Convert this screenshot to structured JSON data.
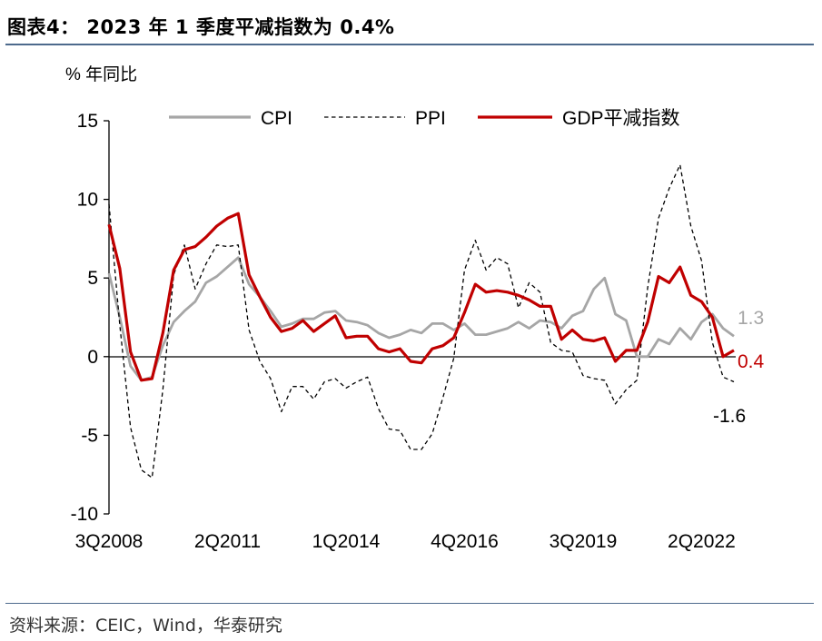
{
  "header": {
    "title": "图表4：  2023 年 1 季度平减指数为 0.4%"
  },
  "source": "资料来源：CEIC，Wind，华泰研究",
  "chart_data": {
    "type": "line",
    "unit_label": "% 年同比",
    "ylim": [
      -10,
      15
    ],
    "yticks": [
      15,
      10,
      5,
      0,
      -5,
      -10
    ],
    "x": [
      "3Q2008",
      "4Q2008",
      "1Q2009",
      "2Q2009",
      "3Q2009",
      "4Q2009",
      "1Q2010",
      "2Q2010",
      "3Q2010",
      "4Q2010",
      "1Q2011",
      "2Q2011",
      "3Q2011",
      "4Q2011",
      "1Q2012",
      "2Q2012",
      "3Q2012",
      "4Q2012",
      "1Q2013",
      "2Q2013",
      "3Q2013",
      "4Q2013",
      "1Q2014",
      "2Q2014",
      "3Q2014",
      "4Q2014",
      "1Q2015",
      "2Q2015",
      "3Q2015",
      "4Q2015",
      "1Q2016",
      "2Q2016",
      "3Q2016",
      "4Q2016",
      "1Q2017",
      "2Q2017",
      "3Q2017",
      "4Q2017",
      "1Q2018",
      "2Q2018",
      "3Q2018",
      "4Q2018",
      "1Q2019",
      "2Q2019",
      "3Q2019",
      "4Q2019",
      "1Q2020",
      "2Q2020",
      "3Q2020",
      "4Q2020",
      "1Q2021",
      "2Q2021",
      "3Q2021",
      "4Q2021",
      "1Q2022",
      "2Q2022",
      "3Q2022",
      "4Q2022",
      "1Q2023"
    ],
    "xtick_labels": [
      "3Q2008",
      "2Q2011",
      "1Q2014",
      "4Q2016",
      "3Q2019",
      "2Q2022"
    ],
    "series": [
      {
        "name": "CPI",
        "color": "#a6a6a6",
        "style": "solid",
        "values": [
          5.3,
          2.5,
          -0.6,
          -1.5,
          -1.3,
          0.7,
          2.2,
          2.9,
          3.5,
          4.7,
          5.1,
          5.7,
          6.3,
          4.6,
          3.8,
          2.9,
          1.9,
          2.1,
          2.4,
          2.4,
          2.8,
          2.9,
          2.3,
          2.2,
          2.0,
          1.5,
          1.2,
          1.4,
          1.7,
          1.5,
          2.1,
          2.1,
          1.7,
          2.1,
          1.4,
          1.4,
          1.6,
          1.8,
          2.2,
          1.8,
          2.3,
          2.2,
          1.8,
          2.6,
          2.9,
          4.3,
          5.0,
          2.7,
          2.3,
          0.0,
          0.0,
          1.1,
          0.8,
          1.8,
          1.1,
          2.2,
          2.7,
          1.8,
          1.3
        ]
      },
      {
        "name": "PPI",
        "color": "#000000",
        "style": "dashed",
        "values": [
          9.7,
          2.0,
          -4.5,
          -7.2,
          -7.7,
          -2.1,
          5.2,
          7.1,
          4.3,
          5.9,
          7.1,
          7.0,
          7.1,
          1.7,
          -0.3,
          -1.4,
          -3.5,
          -1.9,
          -1.9,
          -2.7,
          -1.6,
          -1.4,
          -2.0,
          -1.6,
          -1.3,
          -3.3,
          -4.6,
          -4.7,
          -5.9,
          -5.9,
          -4.9,
          -2.6,
          -0.1,
          5.5,
          7.4,
          5.5,
          6.3,
          5.9,
          3.1,
          4.7,
          4.1,
          0.9,
          0.4,
          0.3,
          -1.2,
          -1.4,
          -1.5,
          -3.0,
          -2.1,
          -1.5,
          4.4,
          8.8,
          10.7,
          12.2,
          8.3,
          6.1,
          0.9,
          -1.3,
          -1.6
        ]
      },
      {
        "name": "GDP平减指数",
        "color": "#c00000",
        "style": "solid",
        "values": [
          8.4,
          5.6,
          0.3,
          -1.5,
          -1.4,
          1.5,
          5.5,
          6.8,
          7.0,
          7.6,
          8.3,
          8.8,
          9.1,
          5.2,
          3.8,
          2.5,
          1.6,
          1.8,
          2.3,
          1.6,
          2.1,
          2.6,
          1.2,
          1.3,
          1.3,
          0.5,
          0.3,
          0.5,
          -0.3,
          -0.4,
          0.5,
          0.7,
          1.2,
          2.8,
          4.6,
          4.1,
          4.2,
          4.1,
          3.9,
          3.6,
          3.2,
          3.2,
          1.1,
          1.7,
          1.1,
          1.0,
          1.2,
          -0.3,
          0.4,
          0.4,
          2.2,
          5.1,
          4.7,
          5.7,
          3.9,
          3.5,
          2.5,
          0.0,
          0.4
        ]
      }
    ],
    "end_labels": [
      {
        "series": "CPI",
        "text": "1.3",
        "color": "#a6a6a6"
      },
      {
        "series": "GDP平减指数",
        "text": "0.4",
        "color": "#c00000"
      },
      {
        "series": "PPI",
        "text": "-1.6",
        "color": "#000000"
      }
    ],
    "legend_position": "top"
  }
}
